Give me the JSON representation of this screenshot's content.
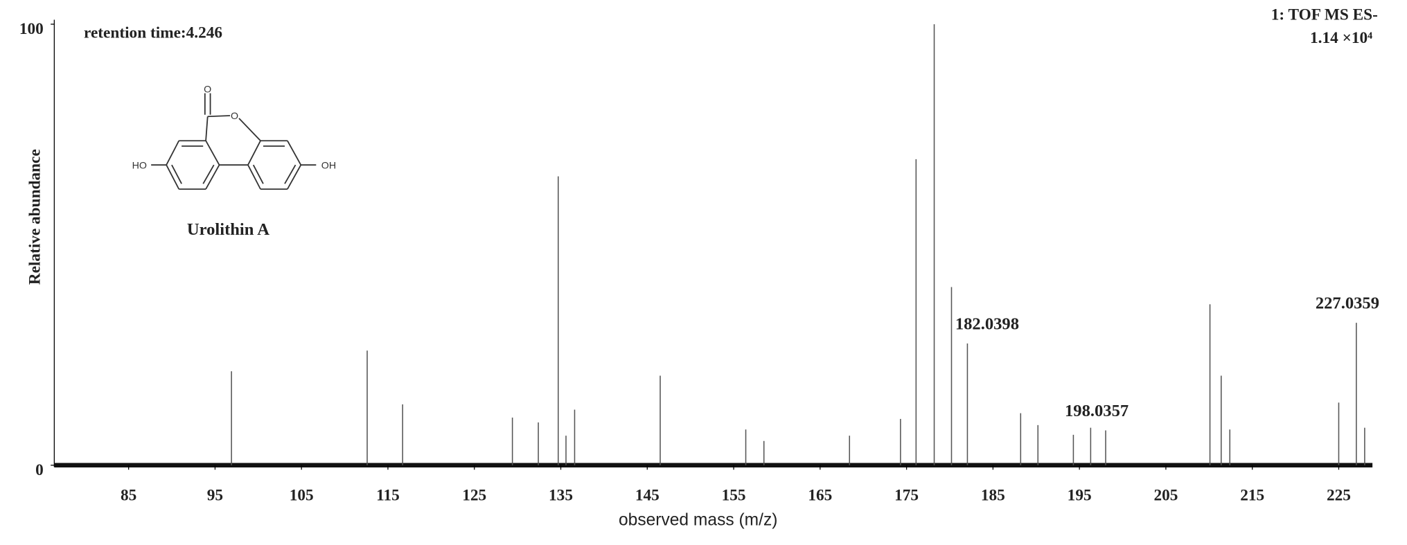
{
  "chart_data": {
    "type": "stem",
    "title": "retention time:4.246",
    "instrument": "1: TOF MS ES-",
    "intensity": "1.14 ×10⁴",
    "compound": "Urolithin A",
    "x_label": "observed mass (m/z)",
    "y_label": "Relative abundance",
    "x": [
      96.9,
      112.6,
      116.7,
      129.4,
      132.4,
      134.7,
      135.6,
      136.6,
      146.5,
      156.4,
      158.5,
      168.4,
      174.3,
      176.1,
      178.2,
      180.2,
      182.0398,
      188.2,
      190.2,
      194.3,
      196.3,
      198.0357,
      210.1,
      211.4,
      212.4,
      225,
      227.0359,
      228
    ],
    "values": [
      21.3,
      26,
      13.8,
      10.8,
      9.7,
      65.5,
      6.7,
      12.6,
      20.3,
      8.1,
      5.5,
      6.7,
      10.5,
      69.4,
      100,
      40.4,
      27.6,
      11.8,
      9.1,
      6.9,
      8.5,
      7.9,
      36.5,
      20.3,
      8.1,
      14.2,
      32.3,
      8.5
    ],
    "color": "#555555",
    "annotations": [
      182.0398,
      198.0357,
      227.0359
    ],
    "xlim": [
      76.4,
      228.9
    ],
    "xticks": [
      85,
      95,
      105,
      115,
      125,
      135,
      145,
      155,
      165,
      175,
      185,
      195,
      205,
      215,
      225
    ],
    "ylim": [
      0,
      100
    ],
    "yticks": [
      0,
      100
    ]
  }
}
